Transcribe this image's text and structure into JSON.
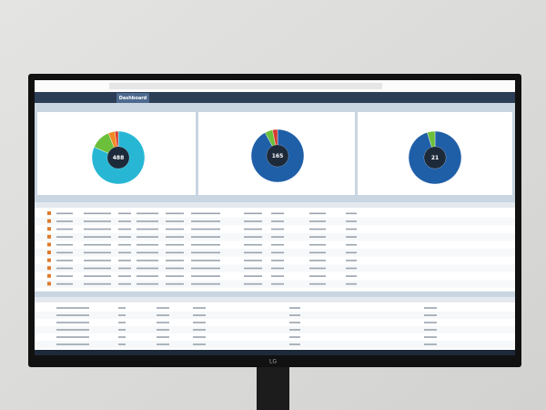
{
  "screen": {
    "tab": "Dashboard",
    "brand": "LG",
    "donuts": [
      {
        "total": "488",
        "values": [
          398,
          60,
          20,
          10
        ],
        "colors": [
          "#27b7d4",
          "#6cbf3a",
          "#f08a24",
          "#d8382c"
        ]
      },
      {
        "total": "165",
        "values": [
          152,
          8,
          5
        ],
        "colors": [
          "#1f5fa8",
          "#6cbf3a",
          "#d8382c"
        ]
      },
      {
        "total": "21",
        "values": [
          20,
          1
        ],
        "colors": [
          "#1f5fa8",
          "#6cbf3a"
        ]
      }
    ]
  }
}
